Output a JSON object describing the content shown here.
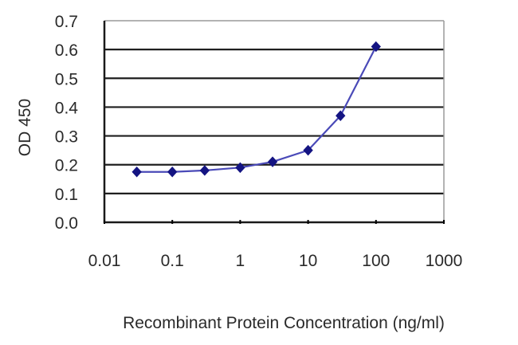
{
  "chart_data": {
    "type": "line",
    "title": "",
    "xlabel": "Recombinant Protein Concentration (ng/ml)",
    "ylabel": "OD 450",
    "x_scale": "log",
    "xlim": [
      0.01,
      1000
    ],
    "ylim": [
      0.0,
      0.7
    ],
    "x_ticks": [
      0.01,
      0.1,
      1,
      10,
      100,
      1000
    ],
    "x_tick_labels": [
      "0.01",
      "0.1",
      "1",
      "10",
      "100",
      "1000"
    ],
    "y_ticks": [
      0.0,
      0.1,
      0.2,
      0.3,
      0.4,
      0.5,
      0.6,
      0.7
    ],
    "y_tick_labels": [
      "0.0",
      "0.1",
      "0.2",
      "0.3",
      "0.4",
      "0.5",
      "0.6",
      "0.7"
    ],
    "grid": "horizontal",
    "legend": "none",
    "series": [
      {
        "name": "OD 450",
        "color": "#1a1a8c",
        "marker": "diamond",
        "x": [
          0.03,
          0.1,
          0.3,
          1,
          3,
          10,
          30,
          100
        ],
        "values": [
          0.175,
          0.175,
          0.18,
          0.19,
          0.21,
          0.25,
          0.37,
          0.61
        ]
      }
    ]
  },
  "colors": {
    "line": "#4a4ab8",
    "marker": "#141482",
    "grid": "#1f1f1f",
    "frame_left_bottom": "#1a1a1a",
    "frame_top_right": "#9a9a9a"
  }
}
